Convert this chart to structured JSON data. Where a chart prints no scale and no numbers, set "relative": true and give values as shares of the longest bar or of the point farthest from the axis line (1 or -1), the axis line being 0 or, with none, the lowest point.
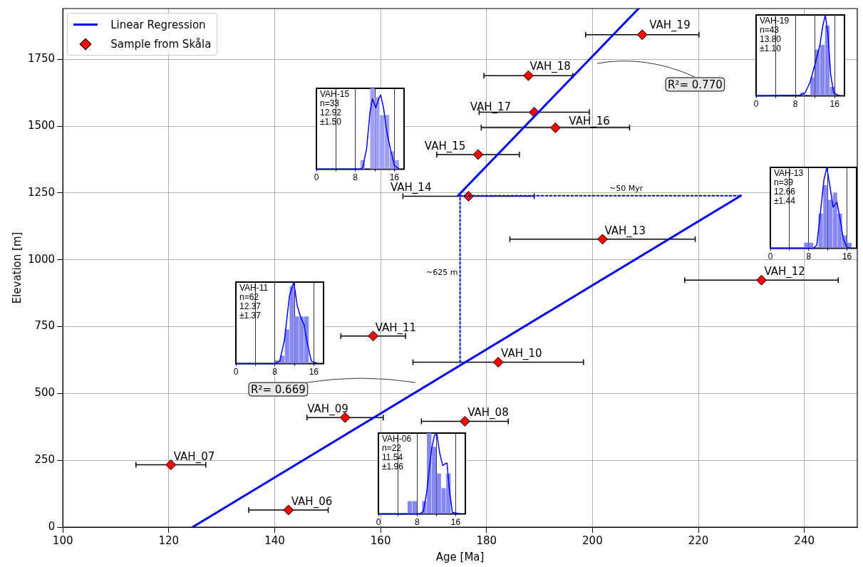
{
  "chart_data": [
    {
      "type": "scatter",
      "xlabel": "Age [Ma]",
      "ylabel": "Elevation [m]",
      "xlim": [
        100,
        250
      ],
      "xticks": [
        100,
        120,
        140,
        160,
        180,
        200,
        220,
        240
      ],
      "ylim": [
        0,
        1940
      ],
      "yticks": [
        0,
        250,
        500,
        750,
        1000,
        1250,
        1500,
        1750
      ],
      "grid": true,
      "legend": "top left",
      "series": [
        {
          "type": "line",
          "name": "Linear Regression",
          "color": "#0000ff",
          "x": [
            124.5,
            228.0
          ],
          "values": [
            0,
            1240
          ]
        },
        {
          "type": "line",
          "color": "#0000ff",
          "x": [
            174.6,
            208.7
          ],
          "values": [
            1240,
            1940
          ]
        },
        {
          "type": "line",
          "color": "#0000ff",
          "line_style": "dotted",
          "x": [
            175.0,
            175.0,
            228.0
          ],
          "values": [
            616,
            1240,
            1240
          ]
        },
        {
          "type": "scatter",
          "name": "Sample from Skåla",
          "color": "#ff0000",
          "marker": "diamond",
          "x": [
            142.6,
            120.4,
            175.9,
            153.3,
            182.2,
            158.6,
            231.9,
            201.9,
            176.6,
            178.4,
            193.0,
            189.0,
            187.9,
            209.4
          ],
          "values": [
            64,
            233,
            396,
            410,
            617,
            715,
            924,
            1077,
            1238,
            1394,
            1494,
            1552,
            1689,
            1842
          ],
          "xerrors": [
            7.5,
            6.6,
            8.2,
            7.2,
            16.1,
            6.1,
            14.5,
            17.5,
            12.4,
            7.8,
            14.0,
            10.4,
            8.4,
            10.7
          ]
        }
      ],
      "annotations": [
        "R²= 0.669",
        "R²= 0.770",
        "~50 Myr",
        "~625 m",
        {
          "text": "VAH_06",
          "x": 142.6,
          "y": 64
        },
        {
          "text": "VAH_07",
          "x": 120.4,
          "y": 233
        },
        {
          "text": "VAH_08",
          "x": 175.9,
          "y": 396
        },
        {
          "text": "VAH_09",
          "x": 153.3,
          "y": 410
        },
        {
          "text": "VAH_10",
          "x": 182.2,
          "y": 617
        },
        {
          "text": "VAH_11",
          "x": 158.6,
          "y": 715
        },
        {
          "text": "VAH_12",
          "x": 231.9,
          "y": 924
        },
        {
          "text": "VAH_13",
          "x": 201.9,
          "y": 1077
        },
        "VAH_14",
        {
          "text": "VAH_15",
          "x": 178.4,
          "y": 1394
        },
        {
          "text": "VAH_16",
          "x": 193.0,
          "y": 1494
        },
        {
          "text": "VAH_17",
          "x": 189.0,
          "y": 1552
        },
        {
          "text": "VAH_18",
          "x": 187.9,
          "y": 1689
        },
        {
          "text": "VAH_19",
          "x": 209.4,
          "y": 1842
        }
      ]
    },
    {
      "type": "histogram",
      "relative": true,
      "color": "#8888f5",
      "bins": [
        9,
        10,
        11,
        12,
        13,
        14,
        15,
        16
      ],
      "values": [
        0.04,
        0,
        0.23,
        0.57,
        0.63,
        0.87,
        0.11
      ],
      "series": [
        {
          "type": "line",
          "color": "#0000ff",
          "x": [
            0,
            9,
            10,
            11,
            12,
            13,
            13.6,
            14.1,
            14.6,
            15.2,
            15.8,
            17
          ],
          "values": [
            0,
            0.01,
            0.04,
            0.17,
            0.39,
            0.63,
            0.87,
            1,
            0.78,
            0.26,
            0.04,
            0
          ]
        }
      ],
      "xlim": [
        0,
        18
      ],
      "xticks": [
        0,
        8,
        16
      ],
      "grid": "x",
      "annotations": [
        "VAH-19",
        "n=43",
        "13.80",
        "±1.10"
      ]
    },
    {
      "type": "histogram",
      "relative": true,
      "color": "#9f9ff7",
      "bins": [
        9,
        10,
        11,
        12,
        13,
        14,
        15,
        16,
        17
      ],
      "values": [
        0.11,
        0,
        1,
        0.89,
        0.67,
        0.67,
        0.22,
        0.11
      ],
      "series": [
        {
          "type": "line",
          "color": "#0000ff",
          "x": [
            0,
            9,
            9.5,
            10.3,
            11,
            11.5,
            12.2,
            12.8,
            13.2,
            13.8,
            14.5,
            15.2,
            16,
            17
          ],
          "values": [
            0,
            0,
            0.02,
            0.25,
            0.7,
            0.87,
            0.76,
            0.87,
            0.92,
            0.75,
            0.45,
            0.25,
            0.05,
            0
          ]
        }
      ],
      "xlim": [
        0,
        18
      ],
      "xticks": [
        0,
        8,
        16
      ],
      "grid": "x",
      "annotations": [
        "VAH-15",
        "n=33",
        "12.92",
        "±1.50"
      ]
    },
    {
      "type": "histogram",
      "relative": true,
      "color": "#8888f5",
      "bins": [
        7,
        8,
        9,
        10,
        11,
        12,
        13,
        14,
        15,
        16,
        17
      ],
      "values": [
        0.07,
        0.07,
        0,
        0.43,
        0.78,
        0.6,
        0.69,
        0.43,
        0.16,
        0.07
      ],
      "series": [
        {
          "type": "line",
          "color": "#0000ff",
          "x": [
            0,
            9,
            9.7,
            10.5,
            11.2,
            11.8,
            12.4,
            13.1,
            13.9,
            14.6,
            15.2,
            16,
            17
          ],
          "values": [
            0,
            0,
            0.04,
            0.47,
            0.85,
            1,
            0.78,
            0.51,
            0.57,
            0.35,
            0.12,
            0.01,
            0
          ]
        }
      ],
      "xlim": [
        0,
        18
      ],
      "xticks": [
        0,
        8,
        16
      ],
      "grid": "x",
      "annotations": [
        "VAH-13",
        "n=39",
        "12.66",
        "±1.44"
      ]
    },
    {
      "type": "histogram",
      "relative": true,
      "color": "#8888f5",
      "bins": [
        8,
        9,
        10,
        11,
        12,
        13,
        14,
        15
      ],
      "values": [
        0.04,
        0.1,
        0.42,
        0.95,
        0.58,
        0.58,
        0.58
      ],
      "series": [
        {
          "type": "line",
          "color": "#0000ff",
          "x": [
            0,
            8,
            9,
            10,
            11,
            11.9,
            12.6,
            13.3,
            14,
            14.6,
            15.5,
            17
          ],
          "values": [
            0,
            0,
            0.03,
            0.3,
            0.83,
            1,
            0.71,
            0.57,
            0.48,
            0.27,
            0.03,
            0
          ]
        }
      ],
      "xlim": [
        0,
        18
      ],
      "xticks": [
        0,
        8,
        16
      ],
      "grid": "x",
      "annotations": [
        "VAH-11",
        "n=62",
        "12.37",
        "±1.37"
      ]
    },
    {
      "type": "histogram",
      "relative": true,
      "color": "#8888f5",
      "bins": [
        6,
        7,
        8,
        9,
        10,
        11,
        12,
        13,
        14,
        15
      ],
      "values": [
        0.16,
        0.16,
        0,
        0.16,
        1,
        0.83,
        0.5,
        0.32,
        0.5
      ],
      "series": [
        {
          "type": "line",
          "color": "#0000ff",
          "x": [
            0,
            8.5,
            9.3,
            10,
            11,
            11.6,
            12.1,
            12.7,
            13.3,
            13.8,
            14.2,
            14.7,
            15.3,
            17
          ],
          "values": [
            0,
            0,
            0.03,
            0.27,
            0.8,
            0.97,
            0.99,
            0.75,
            0.6,
            0.62,
            0.63,
            0.3,
            0.02,
            0
          ]
        }
      ],
      "xlim": [
        0,
        18
      ],
      "xticks": [
        0,
        8,
        16
      ],
      "grid": "x",
      "annotations": [
        "VAH-06",
        "n=22",
        "11.54",
        "±1.96"
      ]
    }
  ]
}
